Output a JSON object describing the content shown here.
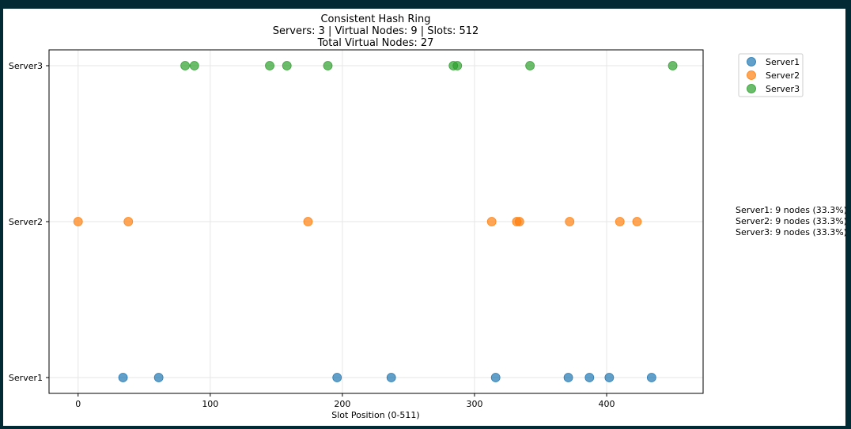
{
  "chart_data": {
    "type": "scatter",
    "title": "Consistent Hash Ring",
    "subtitle_lines": [
      "Servers: 3 | Virtual Nodes: 9 | Slots: 512",
      "Total Virtual Nodes: 27"
    ],
    "xlabel": "Slot Position (0-511)",
    "ylabel": "",
    "xlim": [
      -22,
      473
    ],
    "x_ticks": [
      0,
      100,
      200,
      300,
      400
    ],
    "y_categories": [
      "Server1",
      "Server2",
      "Server3"
    ],
    "grid": true,
    "legend_position": "upper-right-outside",
    "series": [
      {
        "name": "Server1",
        "color": "#1f77b4",
        "y": "Server1",
        "x": [
          34,
          61,
          196,
          237,
          316,
          371,
          387,
          402,
          434
        ]
      },
      {
        "name": "Server2",
        "color": "#ff7f0e",
        "y": "Server2",
        "x": [
          0,
          38,
          174,
          313,
          332,
          334,
          372,
          410,
          423
        ]
      },
      {
        "name": "Server3",
        "color": "#2ca02c",
        "y": "Server3",
        "x": [
          81,
          88,
          145,
          158,
          189,
          284,
          287,
          342,
          450
        ]
      }
    ],
    "annotations": [
      "Server1: 9 nodes (33.3%)",
      "Server2: 9 nodes (33.3%)",
      "Server3: 9 nodes (33.3%)"
    ]
  }
}
